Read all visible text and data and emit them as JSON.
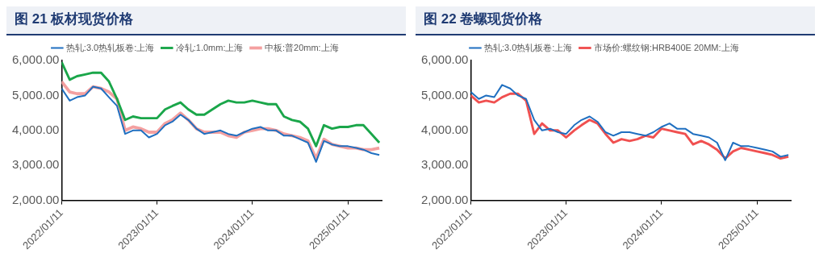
{
  "chart_data": [
    {
      "type": "line",
      "title": "图 21 板材现货价格",
      "legend": "top",
      "grid": false,
      "marker": "none",
      "line_style": "solid",
      "x": [
        "2022-01-11",
        "2022-02-11",
        "2022-03-11",
        "2022-04-11",
        "2022-05-11",
        "2022-06-11",
        "2022-07-11",
        "2022-08-11",
        "2022-09-11",
        "2022-10-11",
        "2022-11-11",
        "2022-12-11",
        "2023-01-11",
        "2023-02-11",
        "2023-03-11",
        "2023-04-11",
        "2023-05-11",
        "2023-06-11",
        "2023-07-11",
        "2023-08-11",
        "2023-09-11",
        "2023-10-11",
        "2023-11-11",
        "2023-12-11",
        "2024-01-11",
        "2024-02-11",
        "2024-03-11",
        "2024-04-11",
        "2024-05-11",
        "2024-06-11",
        "2024-07-11",
        "2024-08-11",
        "2024-09-11",
        "2024-10-11",
        "2024-11-11",
        "2024-12-11",
        "2025-01-11",
        "2025-02-11",
        "2025-03-11",
        "2025-04-11",
        "2025-05-11"
      ],
      "series": [
        {
          "name": "热轧:3.0热轧板卷:上海",
          "color": "#1f6fc0",
          "values": [
            5200,
            4850,
            4950,
            5000,
            5250,
            5200,
            4950,
            4700,
            3900,
            4000,
            4000,
            3800,
            3900,
            4150,
            4250,
            4450,
            4300,
            4050,
            3900,
            3950,
            4000,
            3900,
            3850,
            3950,
            4050,
            4100,
            4000,
            4000,
            3850,
            3850,
            3750,
            3650,
            3100,
            3700,
            3600,
            3550,
            3550,
            3500,
            3450,
            3350,
            3300
          ]
        },
        {
          "name": "冷轧:1.0mm:上海",
          "color": "#1aa64a",
          "values": [
            5950,
            5450,
            5550,
            5600,
            5650,
            5650,
            5400,
            4900,
            4300,
            4400,
            4350,
            4350,
            4350,
            4600,
            4700,
            4800,
            4600,
            4450,
            4450,
            4600,
            4750,
            4850,
            4800,
            4800,
            4850,
            4800,
            4750,
            4750,
            4400,
            4300,
            4250,
            4050,
            3550,
            4150,
            4050,
            4100,
            4100,
            4150,
            4150,
            3900,
            3650
          ]
        },
        {
          "name": "中板:普20mm:上海",
          "color": "#f4a0a0",
          "values": [
            5400,
            5100,
            5050,
            5050,
            5250,
            5200,
            5100,
            4900,
            4000,
            4100,
            4050,
            3950,
            3950,
            4200,
            4300,
            4500,
            4300,
            4050,
            3950,
            3950,
            3950,
            3850,
            3800,
            3950,
            4000,
            4050,
            4050,
            4000,
            3900,
            3850,
            3800,
            3700,
            3200,
            3750,
            3600,
            3550,
            3500,
            3500,
            3450,
            3450,
            3500
          ]
        }
      ],
      "xlim": [
        "2022-01-11",
        "2025-05-20"
      ],
      "xticks": [
        {
          "value": "2022-01-11",
          "label": "2022/01/11"
        },
        {
          "value": "2023-01-11",
          "label": "2023/01/11"
        },
        {
          "value": "2024-01-11",
          "label": "2024/01/11"
        },
        {
          "value": "2025-01-11",
          "label": "2025/01/11"
        }
      ],
      "ylim": [
        2000,
        6000
      ],
      "yticks": [
        {
          "value": 2000,
          "label": "2,000.00"
        },
        {
          "value": 3000,
          "label": "3,000.00"
        },
        {
          "value": 4000,
          "label": "4,000.00"
        },
        {
          "value": 5000,
          "label": "5,000.00"
        },
        {
          "value": 6000,
          "label": "6,000.00"
        }
      ]
    },
    {
      "type": "line",
      "title": "图 22 卷螺现货价格",
      "legend": "top",
      "grid": false,
      "marker": "none",
      "line_style": "solid",
      "x": [
        "2022-01-11",
        "2022-02-11",
        "2022-03-11",
        "2022-04-11",
        "2022-05-11",
        "2022-06-11",
        "2022-07-11",
        "2022-08-11",
        "2022-09-11",
        "2022-10-11",
        "2022-11-11",
        "2022-12-11",
        "2023-01-11",
        "2023-02-11",
        "2023-03-11",
        "2023-04-11",
        "2023-05-11",
        "2023-06-11",
        "2023-07-11",
        "2023-08-11",
        "2023-09-11",
        "2023-10-11",
        "2023-11-11",
        "2023-12-11",
        "2024-01-11",
        "2024-02-11",
        "2024-03-11",
        "2024-04-11",
        "2024-05-11",
        "2024-06-11",
        "2024-07-11",
        "2024-08-11",
        "2024-09-11",
        "2024-10-11",
        "2024-11-11",
        "2024-12-11",
        "2025-01-11",
        "2025-02-11",
        "2025-03-11",
        "2025-04-11",
        "2025-05-11"
      ],
      "series": [
        {
          "name": "热轧:3.0热轧板卷:上海",
          "color": "#1f6fc0",
          "values": [
            5100,
            4900,
            5000,
            4950,
            5300,
            5200,
            5000,
            4900,
            4300,
            4000,
            4050,
            3950,
            3900,
            4150,
            4300,
            4400,
            4250,
            3950,
            3850,
            3950,
            3950,
            3900,
            3850,
            3950,
            4100,
            4200,
            4050,
            4050,
            3900,
            3850,
            3800,
            3650,
            3150,
            3650,
            3550,
            3550,
            3500,
            3450,
            3400,
            3250,
            3300
          ]
        },
        {
          "name": "市场价:螺纹钢:HRB400E 20MM:上海",
          "color": "#f05050",
          "values": [
            5000,
            4800,
            4850,
            4800,
            4950,
            5050,
            5050,
            4850,
            3900,
            4200,
            4000,
            4000,
            3800,
            4000,
            4150,
            4300,
            4200,
            3900,
            3650,
            3750,
            3700,
            3750,
            3850,
            3800,
            4050,
            4000,
            3950,
            3900,
            3600,
            3700,
            3600,
            3450,
            3200,
            3400,
            3500,
            3450,
            3400,
            3350,
            3300,
            3200,
            3250
          ]
        }
      ],
      "xlim": [
        "2022-01-11",
        "2025-05-20"
      ],
      "xticks": [
        {
          "value": "2022-01-11",
          "label": "2022/01/11"
        },
        {
          "value": "2023-01-11",
          "label": "2023/01/11"
        },
        {
          "value": "2024-01-11",
          "label": "2024/01/11"
        },
        {
          "value": "2025-01-11",
          "label": "2025/01/11"
        }
      ],
      "ylim": [
        2000,
        6000
      ],
      "yticks": [
        {
          "value": 2000,
          "label": "2,000.00"
        },
        {
          "value": 3000,
          "label": "3,000.00"
        },
        {
          "value": 4000,
          "label": "4,000.00"
        },
        {
          "value": 5000,
          "label": "5,000.00"
        },
        {
          "value": 6000,
          "label": "6,000.00"
        }
      ]
    }
  ]
}
